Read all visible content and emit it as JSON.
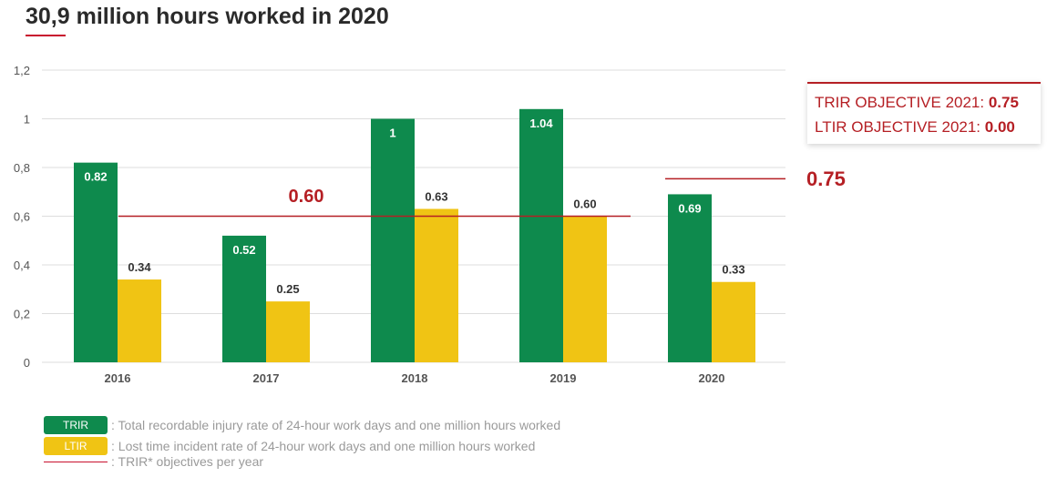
{
  "colors": {
    "trir": "#0e8a4d",
    "ltir": "#f0c414",
    "objective": "#b51f24",
    "grid": "#dddddd",
    "axis_text": "#555555"
  },
  "chart_data": {
    "type": "bar",
    "title": "30,9 million hours worked in 2020",
    "categories": [
      "2016",
      "2017",
      "2018",
      "2019",
      "2020"
    ],
    "series": [
      {
        "name": "TRIR",
        "values": [
          0.82,
          0.52,
          1.0,
          1.04,
          0.69
        ],
        "labels": [
          "0.82",
          "0.52",
          "1",
          "1.04",
          "0.69"
        ]
      },
      {
        "name": "LTIR",
        "values": [
          0.34,
          0.25,
          0.63,
          0.6,
          0.33
        ],
        "labels": [
          "0.34",
          "0.25",
          "0.63",
          "0.60",
          "0.33"
        ]
      }
    ],
    "ylim": [
      0,
      1.2
    ],
    "yticks": [
      0,
      0.2,
      0.4,
      0.6,
      0.8,
      1.0,
      1.2
    ],
    "ytick_labels": [
      "0",
      "0,2",
      "0,4",
      "0,6",
      "0,8",
      "1",
      "1,2"
    ],
    "grid": true,
    "objectives": [
      {
        "label": "0.60",
        "value": 0.6,
        "span_categories": [
          "2016",
          "2019"
        ]
      },
      {
        "label": "0.75",
        "value": 0.75,
        "span_categories": [
          "2020"
        ]
      }
    ]
  },
  "objective_box": {
    "trir_text": "TRIR OBJECTIVE 2021: ",
    "trir_value": "0.75",
    "ltir_text": "LTIR OBJECTIVE 2021: ",
    "ltir_value": "0.00"
  },
  "legend": {
    "trir_chip": "TRIR",
    "trir_desc": ": Total recordable injury rate of 24-hour work days and one million hours worked",
    "ltir_chip": "LTIR",
    "ltir_desc": ": Lost time incident rate of 24-hour work days and one million hours worked",
    "objective_desc": ": TRIR* objectives per year"
  }
}
